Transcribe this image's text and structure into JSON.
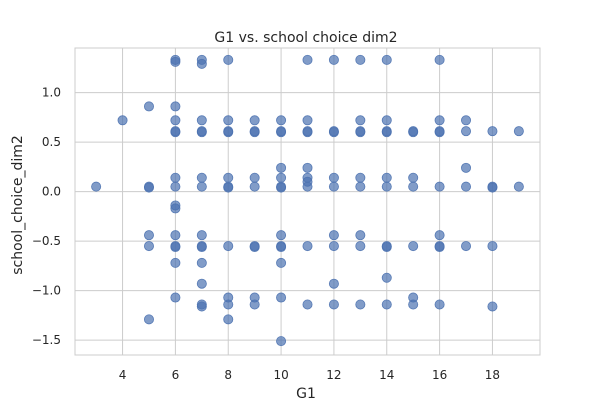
{
  "chart_data": {
    "type": "scatter",
    "title": "G1 vs. school choice dim2",
    "xlabel": "G1",
    "ylabel": "school_choice_dim2",
    "xlim": [
      2.2,
      19.8
    ],
    "ylim": [
      -1.65,
      1.45
    ],
    "xticks": [
      4,
      6,
      8,
      10,
      12,
      14,
      16,
      18
    ],
    "yticks": [
      -1.5,
      -1.0,
      -0.5,
      0.0,
      0.5,
      1.0
    ],
    "ytick_labels": [
      "−1.5",
      "−1.0",
      "−0.5",
      "0.0",
      "0.5",
      "1.0"
    ],
    "grid": true,
    "legend": "none",
    "color": "#4c72b0",
    "points": [
      [
        3,
        0.05
      ],
      [
        4,
        0.72
      ],
      [
        5,
        0.86
      ],
      [
        5,
        0.05
      ],
      [
        5,
        0.04
      ],
      [
        5,
        -0.44
      ],
      [
        5,
        -0.55
      ],
      [
        5,
        -1.29
      ],
      [
        6,
        1.33
      ],
      [
        6,
        1.31
      ],
      [
        6,
        0.86
      ],
      [
        6,
        0.72
      ],
      [
        6,
        0.61
      ],
      [
        6,
        0.6
      ],
      [
        6,
        0.14
      ],
      [
        6,
        0.05
      ],
      [
        6,
        -0.14
      ],
      [
        6,
        -0.17
      ],
      [
        6,
        -0.44
      ],
      [
        6,
        -0.55
      ],
      [
        6,
        -0.56
      ],
      [
        6,
        -0.72
      ],
      [
        6,
        -1.07
      ],
      [
        7,
        1.33
      ],
      [
        7,
        1.29
      ],
      [
        7,
        0.72
      ],
      [
        7,
        0.61
      ],
      [
        7,
        0.6
      ],
      [
        7,
        0.14
      ],
      [
        7,
        0.05
      ],
      [
        7,
        -0.44
      ],
      [
        7,
        -0.55
      ],
      [
        7,
        -0.56
      ],
      [
        7,
        -0.72
      ],
      [
        7,
        -0.93
      ],
      [
        7,
        -1.14
      ],
      [
        7,
        -1.16
      ],
      [
        8,
        1.33
      ],
      [
        8,
        0.72
      ],
      [
        8,
        0.61
      ],
      [
        8,
        0.6
      ],
      [
        8,
        0.14
      ],
      [
        8,
        0.05
      ],
      [
        8,
        0.04
      ],
      [
        8,
        -0.55
      ],
      [
        8,
        -1.07
      ],
      [
        8,
        -1.14
      ],
      [
        8,
        -1.29
      ],
      [
        9,
        0.72
      ],
      [
        9,
        0.61
      ],
      [
        9,
        0.6
      ],
      [
        9,
        0.14
      ],
      [
        9,
        0.05
      ],
      [
        9,
        -0.55
      ],
      [
        9,
        -0.56
      ],
      [
        9,
        -1.07
      ],
      [
        9,
        -1.14
      ],
      [
        10,
        0.72
      ],
      [
        10,
        0.61
      ],
      [
        10,
        0.6
      ],
      [
        10,
        0.24
      ],
      [
        10,
        0.14
      ],
      [
        10,
        0.05
      ],
      [
        10,
        0.04
      ],
      [
        10,
        -0.44
      ],
      [
        10,
        -0.55
      ],
      [
        10,
        -0.56
      ],
      [
        10,
        -0.72
      ],
      [
        10,
        -1.07
      ],
      [
        10,
        -1.51
      ],
      [
        11,
        1.33
      ],
      [
        11,
        0.72
      ],
      [
        11,
        0.61
      ],
      [
        11,
        0.6
      ],
      [
        11,
        0.24
      ],
      [
        11,
        0.14
      ],
      [
        11,
        0.1
      ],
      [
        11,
        0.05
      ],
      [
        11,
        -0.55
      ],
      [
        11,
        -1.14
      ],
      [
        12,
        1.33
      ],
      [
        12,
        0.61
      ],
      [
        12,
        0.6
      ],
      [
        12,
        0.14
      ],
      [
        12,
        0.05
      ],
      [
        12,
        -0.44
      ],
      [
        12,
        -0.55
      ],
      [
        12,
        -0.93
      ],
      [
        12,
        -1.14
      ],
      [
        13,
        1.33
      ],
      [
        13,
        0.72
      ],
      [
        13,
        0.61
      ],
      [
        13,
        0.6
      ],
      [
        13,
        0.14
      ],
      [
        13,
        0.05
      ],
      [
        13,
        -0.44
      ],
      [
        13,
        -0.55
      ],
      [
        13,
        -1.14
      ],
      [
        14,
        1.33
      ],
      [
        14,
        0.72
      ],
      [
        14,
        0.61
      ],
      [
        14,
        0.6
      ],
      [
        14,
        0.14
      ],
      [
        14,
        0.05
      ],
      [
        14,
        -0.55
      ],
      [
        14,
        -0.56
      ],
      [
        14,
        -0.87
      ],
      [
        14,
        -1.14
      ],
      [
        15,
        0.61
      ],
      [
        15,
        0.6
      ],
      [
        15,
        0.14
      ],
      [
        15,
        0.05
      ],
      [
        15,
        -0.55
      ],
      [
        15,
        -1.07
      ],
      [
        15,
        -1.14
      ],
      [
        16,
        1.33
      ],
      [
        16,
        0.72
      ],
      [
        16,
        0.61
      ],
      [
        16,
        0.6
      ],
      [
        16,
        0.05
      ],
      [
        16,
        -0.44
      ],
      [
        16,
        -0.55
      ],
      [
        16,
        -0.56
      ],
      [
        16,
        -1.14
      ],
      [
        17,
        0.72
      ],
      [
        17,
        0.61
      ],
      [
        17,
        0.24
      ],
      [
        17,
        0.05
      ],
      [
        17,
        -0.55
      ],
      [
        18,
        0.61
      ],
      [
        18,
        0.05
      ],
      [
        18,
        0.04
      ],
      [
        18,
        -0.55
      ],
      [
        18,
        -1.16
      ],
      [
        19,
        0.61
      ],
      [
        19,
        0.05
      ]
    ]
  }
}
